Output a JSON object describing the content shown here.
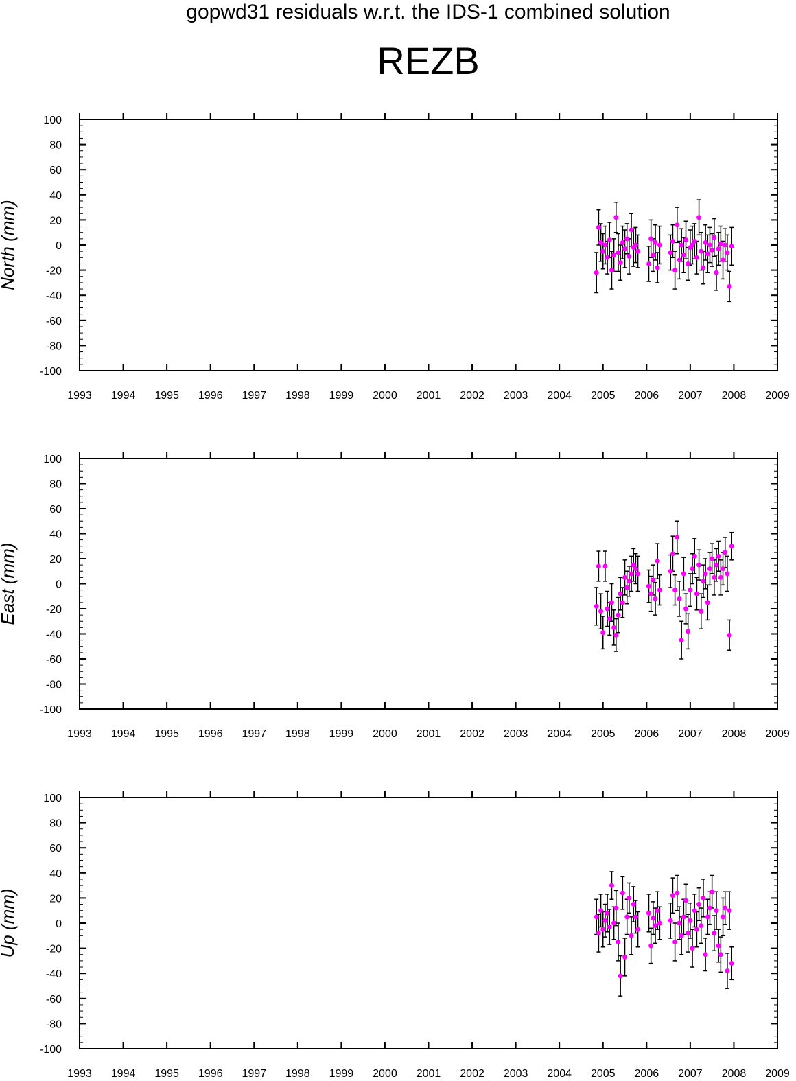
{
  "figure": {
    "title": "gopwd31 residuals w.r.t. the IDS-1 combined solution",
    "subtitle": "REZB"
  },
  "colors": {
    "marker": "#ff00ff",
    "error_bar": "#000000",
    "axis": "#000000"
  },
  "chart_data": [
    {
      "type": "scatter",
      "ylabel": "North (mm)",
      "xlim": [
        1993,
        2009
      ],
      "ylim": [
        -100,
        100
      ],
      "xticks": [
        1993,
        1994,
        1995,
        1996,
        1997,
        1998,
        1999,
        2000,
        2001,
        2002,
        2003,
        2004,
        2005,
        2006,
        2007,
        2008,
        2009
      ],
      "yticks": [
        -100,
        -80,
        -60,
        -40,
        -20,
        0,
        20,
        40,
        60,
        80,
        100
      ],
      "grid": false,
      "error_bars": true,
      "series": [
        {
          "x": [
            2004.85,
            2004.9,
            2004.95,
            2005.0,
            2005.05,
            2005.1,
            2005.15,
            2005.2,
            2005.25,
            2005.3,
            2005.35,
            2005.4,
            2005.45,
            2005.5,
            2005.55,
            2005.6,
            2005.65,
            2005.7,
            2005.75,
            2005.8,
            2006.05,
            2006.1,
            2006.15,
            2006.2,
            2006.25,
            2006.3,
            2006.55,
            2006.6,
            2006.65,
            2006.7,
            2006.75,
            2006.8,
            2006.85,
            2006.9,
            2006.95,
            2007.0,
            2007.05,
            2007.1,
            2007.15,
            2007.2,
            2007.25,
            2007.3,
            2007.35,
            2007.4,
            2007.45,
            2007.5,
            2007.55,
            2007.6,
            2007.65,
            2007.7,
            2007.75,
            2007.8,
            2007.85,
            2007.9,
            2007.95
          ],
          "y": [
            -22,
            14,
            2,
            -5,
            0,
            -10,
            4,
            -20,
            -8,
            22,
            -6,
            -14,
            2,
            -3,
            5,
            -9,
            12,
            -2,
            0,
            -5,
            -15,
            5,
            -8,
            2,
            -18,
            0,
            -6,
            3,
            -20,
            16,
            -12,
            0,
            -8,
            4,
            -15,
            -2,
            0,
            3,
            -10,
            22,
            -5,
            -18,
            2,
            -7,
            0,
            -4,
            6,
            -22,
            -3,
            1,
            -12,
            0,
            -6,
            -33,
            -1
          ],
          "err": [
            16,
            14,
            15,
            14,
            15,
            13,
            14,
            15,
            13,
            12,
            15,
            14,
            13,
            15,
            12,
            14,
            13,
            15,
            14,
            13,
            14,
            15,
            13,
            14,
            12,
            15,
            14,
            13,
            15,
            14,
            15,
            13,
            14,
            15,
            13,
            14,
            15,
            14,
            13,
            14,
            15,
            13,
            14,
            15,
            14,
            13,
            15,
            14,
            13,
            14,
            15,
            13,
            14,
            12,
            15
          ]
        }
      ]
    },
    {
      "type": "scatter",
      "ylabel": "East (mm)",
      "xlim": [
        1993,
        2009
      ],
      "ylim": [
        -100,
        100
      ],
      "xticks": [
        1993,
        1994,
        1995,
        1996,
        1997,
        1998,
        1999,
        2000,
        2001,
        2002,
        2003,
        2004,
        2005,
        2006,
        2007,
        2008,
        2009
      ],
      "yticks": [
        -100,
        -80,
        -60,
        -40,
        -20,
        0,
        20,
        40,
        60,
        80,
        100
      ],
      "grid": false,
      "error_bars": true,
      "series": [
        {
          "x": [
            2004.85,
            2004.9,
            2004.95,
            2005.0,
            2005.05,
            2005.1,
            2005.15,
            2005.2,
            2005.25,
            2005.3,
            2005.35,
            2005.4,
            2005.45,
            2005.5,
            2005.55,
            2005.6,
            2005.65,
            2005.7,
            2005.75,
            2005.8,
            2006.05,
            2006.1,
            2006.15,
            2006.2,
            2006.25,
            2006.3,
            2006.55,
            2006.6,
            2006.65,
            2006.7,
            2006.75,
            2006.8,
            2006.85,
            2006.9,
            2006.95,
            2007.0,
            2007.05,
            2007.1,
            2007.15,
            2007.2,
            2007.25,
            2007.3,
            2007.35,
            2007.4,
            2007.45,
            2007.5,
            2007.55,
            2007.6,
            2007.65,
            2007.7,
            2007.75,
            2007.8,
            2007.85,
            2007.9,
            2007.95
          ],
          "y": [
            -18,
            14,
            -22,
            -39,
            14,
            -20,
            -28,
            -15,
            -35,
            -41,
            -25,
            -8,
            -15,
            5,
            -3,
            2,
            8,
            15,
            12,
            8,
            -2,
            -8,
            3,
            -12,
            18,
            -5,
            10,
            24,
            -5,
            37,
            -12,
            -45,
            8,
            -20,
            -38,
            -5,
            12,
            22,
            -8,
            15,
            -22,
            2,
            8,
            -15,
            12,
            20,
            5,
            15,
            22,
            5,
            12,
            25,
            8,
            -41,
            30
          ],
          "err": [
            15,
            12,
            14,
            13,
            12,
            14,
            13,
            15,
            14,
            13,
            14,
            13,
            12,
            14,
            13,
            12,
            14,
            13,
            12,
            14,
            13,
            14,
            12,
            13,
            14,
            12,
            13,
            14,
            12,
            13,
            14,
            15,
            13,
            12,
            14,
            13,
            12,
            14,
            13,
            12,
            14,
            13,
            12,
            14,
            13,
            12,
            14,
            13,
            12,
            14,
            13,
            12,
            14,
            12,
            11
          ]
        }
      ]
    },
    {
      "type": "scatter",
      "ylabel": "Up (mm)",
      "xlim": [
        1993,
        2009
      ],
      "ylim": [
        -100,
        100
      ],
      "xticks": [
        1993,
        1994,
        1995,
        1996,
        1997,
        1998,
        1999,
        2000,
        2001,
        2002,
        2003,
        2004,
        2005,
        2006,
        2007,
        2008,
        2009
      ],
      "yticks": [
        -100,
        -80,
        -60,
        -40,
        -20,
        0,
        20,
        40,
        60,
        80,
        100
      ],
      "grid": false,
      "error_bars": true,
      "series": [
        {
          "x": [
            2004.85,
            2004.9,
            2004.95,
            2005.0,
            2005.05,
            2005.1,
            2005.15,
            2005.2,
            2005.25,
            2005.3,
            2005.35,
            2005.4,
            2005.45,
            2005.5,
            2005.55,
            2005.6,
            2005.65,
            2005.7,
            2005.75,
            2005.8,
            2006.05,
            2006.1,
            2006.15,
            2006.2,
            2006.25,
            2006.3,
            2006.55,
            2006.6,
            2006.65,
            2006.7,
            2006.75,
            2006.8,
            2006.85,
            2006.9,
            2006.95,
            2007.0,
            2007.05,
            2007.1,
            2007.15,
            2007.2,
            2007.25,
            2007.3,
            2007.35,
            2007.4,
            2007.45,
            2007.5,
            2007.55,
            2007.6,
            2007.65,
            2007.7,
            2007.75,
            2007.8,
            2007.85,
            2007.9,
            2007.95
          ],
          "y": [
            5,
            -8,
            10,
            -5,
            2,
            8,
            -3,
            30,
            0,
            12,
            -15,
            -42,
            24,
            -27,
            5,
            20,
            -10,
            15,
            5,
            -5,
            8,
            -18,
            4,
            -2,
            10,
            0,
            2,
            22,
            -15,
            24,
            0,
            -10,
            5,
            18,
            -8,
            2,
            -20,
            10,
            -5,
            15,
            -2,
            20,
            -25,
            5,
            12,
            25,
            -8,
            10,
            -18,
            -25,
            5,
            12,
            -38,
            10,
            -32
          ],
          "err": [
            14,
            15,
            13,
            14,
            13,
            15,
            14,
            11,
            13,
            14,
            15,
            16,
            13,
            15,
            14,
            12,
            15,
            14,
            13,
            14,
            15,
            14,
            13,
            14,
            15,
            13,
            14,
            14,
            15,
            14,
            13,
            15,
            14,
            13,
            15,
            14,
            15,
            13,
            14,
            13,
            14,
            15,
            13,
            14,
            13,
            13,
            14,
            15,
            13,
            14,
            15,
            13,
            14,
            15,
            13
          ]
        }
      ]
    }
  ]
}
